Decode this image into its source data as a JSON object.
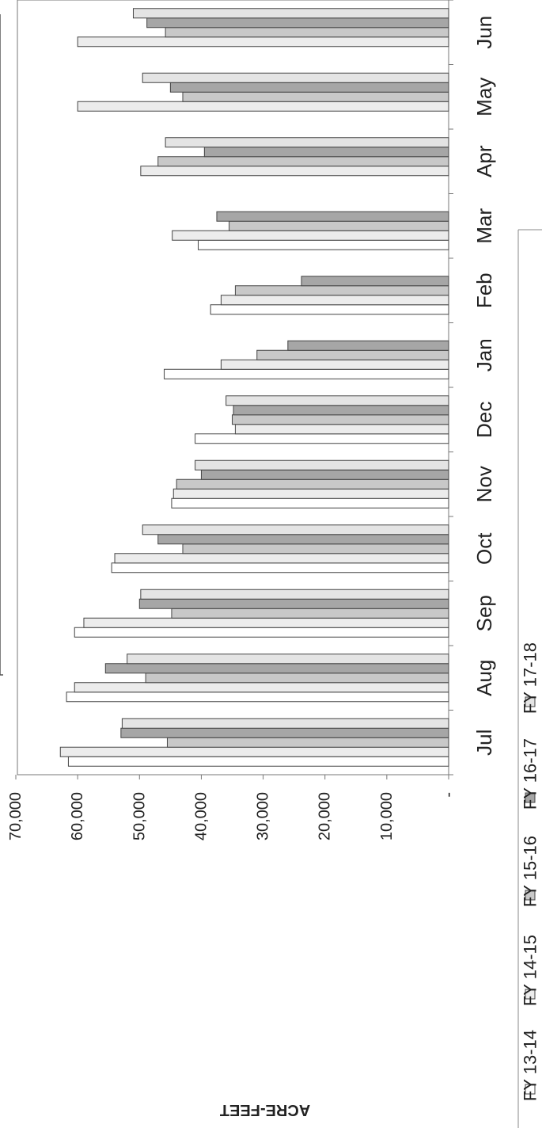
{
  "chart_data": {
    "type": "bar",
    "orientation": "vertical-bars, page rotated 90 degrees",
    "ylabel": "ACRE-FEET",
    "ylim": [
      0,
      70000
    ],
    "yticks": [
      "-",
      "10,000",
      "20,000",
      "30,000",
      "40,000",
      "50,000",
      "60,000",
      "70,000"
    ],
    "ytick_values": [
      0,
      10000,
      20000,
      30000,
      40000,
      50000,
      60000,
      70000
    ],
    "categories": [
      "Jul",
      "Aug",
      "Sep",
      "Oct",
      "Nov",
      "Dec",
      "Jan",
      "Feb",
      "Mar",
      "Apr",
      "May",
      "Jun"
    ],
    "legend_position": "bottom",
    "grid": false,
    "series": [
      {
        "name": "FY 13-14",
        "color": "#ffffff",
        "values": [
          61500,
          61800,
          60500,
          54500,
          44800,
          41000,
          46000,
          38500,
          40500,
          null,
          null,
          null
        ]
      },
      {
        "name": "FY 14-15",
        "color": "#ececec",
        "values": [
          62800,
          60500,
          59000,
          54000,
          44500,
          34500,
          36800,
          36800,
          44700,
          49800,
          60000,
          60000
        ]
      },
      {
        "name": "FY 15-16",
        "color": "#c8c8c8",
        "values": [
          45500,
          49000,
          44800,
          43000,
          44000,
          35000,
          31000,
          34500,
          35500,
          47000,
          43000,
          45800
        ]
      },
      {
        "name": "FY 16-17",
        "color": "#a6a6a6",
        "values": [
          53000,
          55500,
          50000,
          47000,
          40000,
          34800,
          26000,
          23800,
          37500,
          39500,
          45000,
          48800
        ]
      },
      {
        "name": "FY 17-18",
        "color": "#e4e4e4",
        "values": [
          52800,
          52000,
          49800,
          49500,
          41000,
          36000,
          null,
          null,
          null,
          45800,
          49500,
          51000
        ]
      }
    ]
  }
}
